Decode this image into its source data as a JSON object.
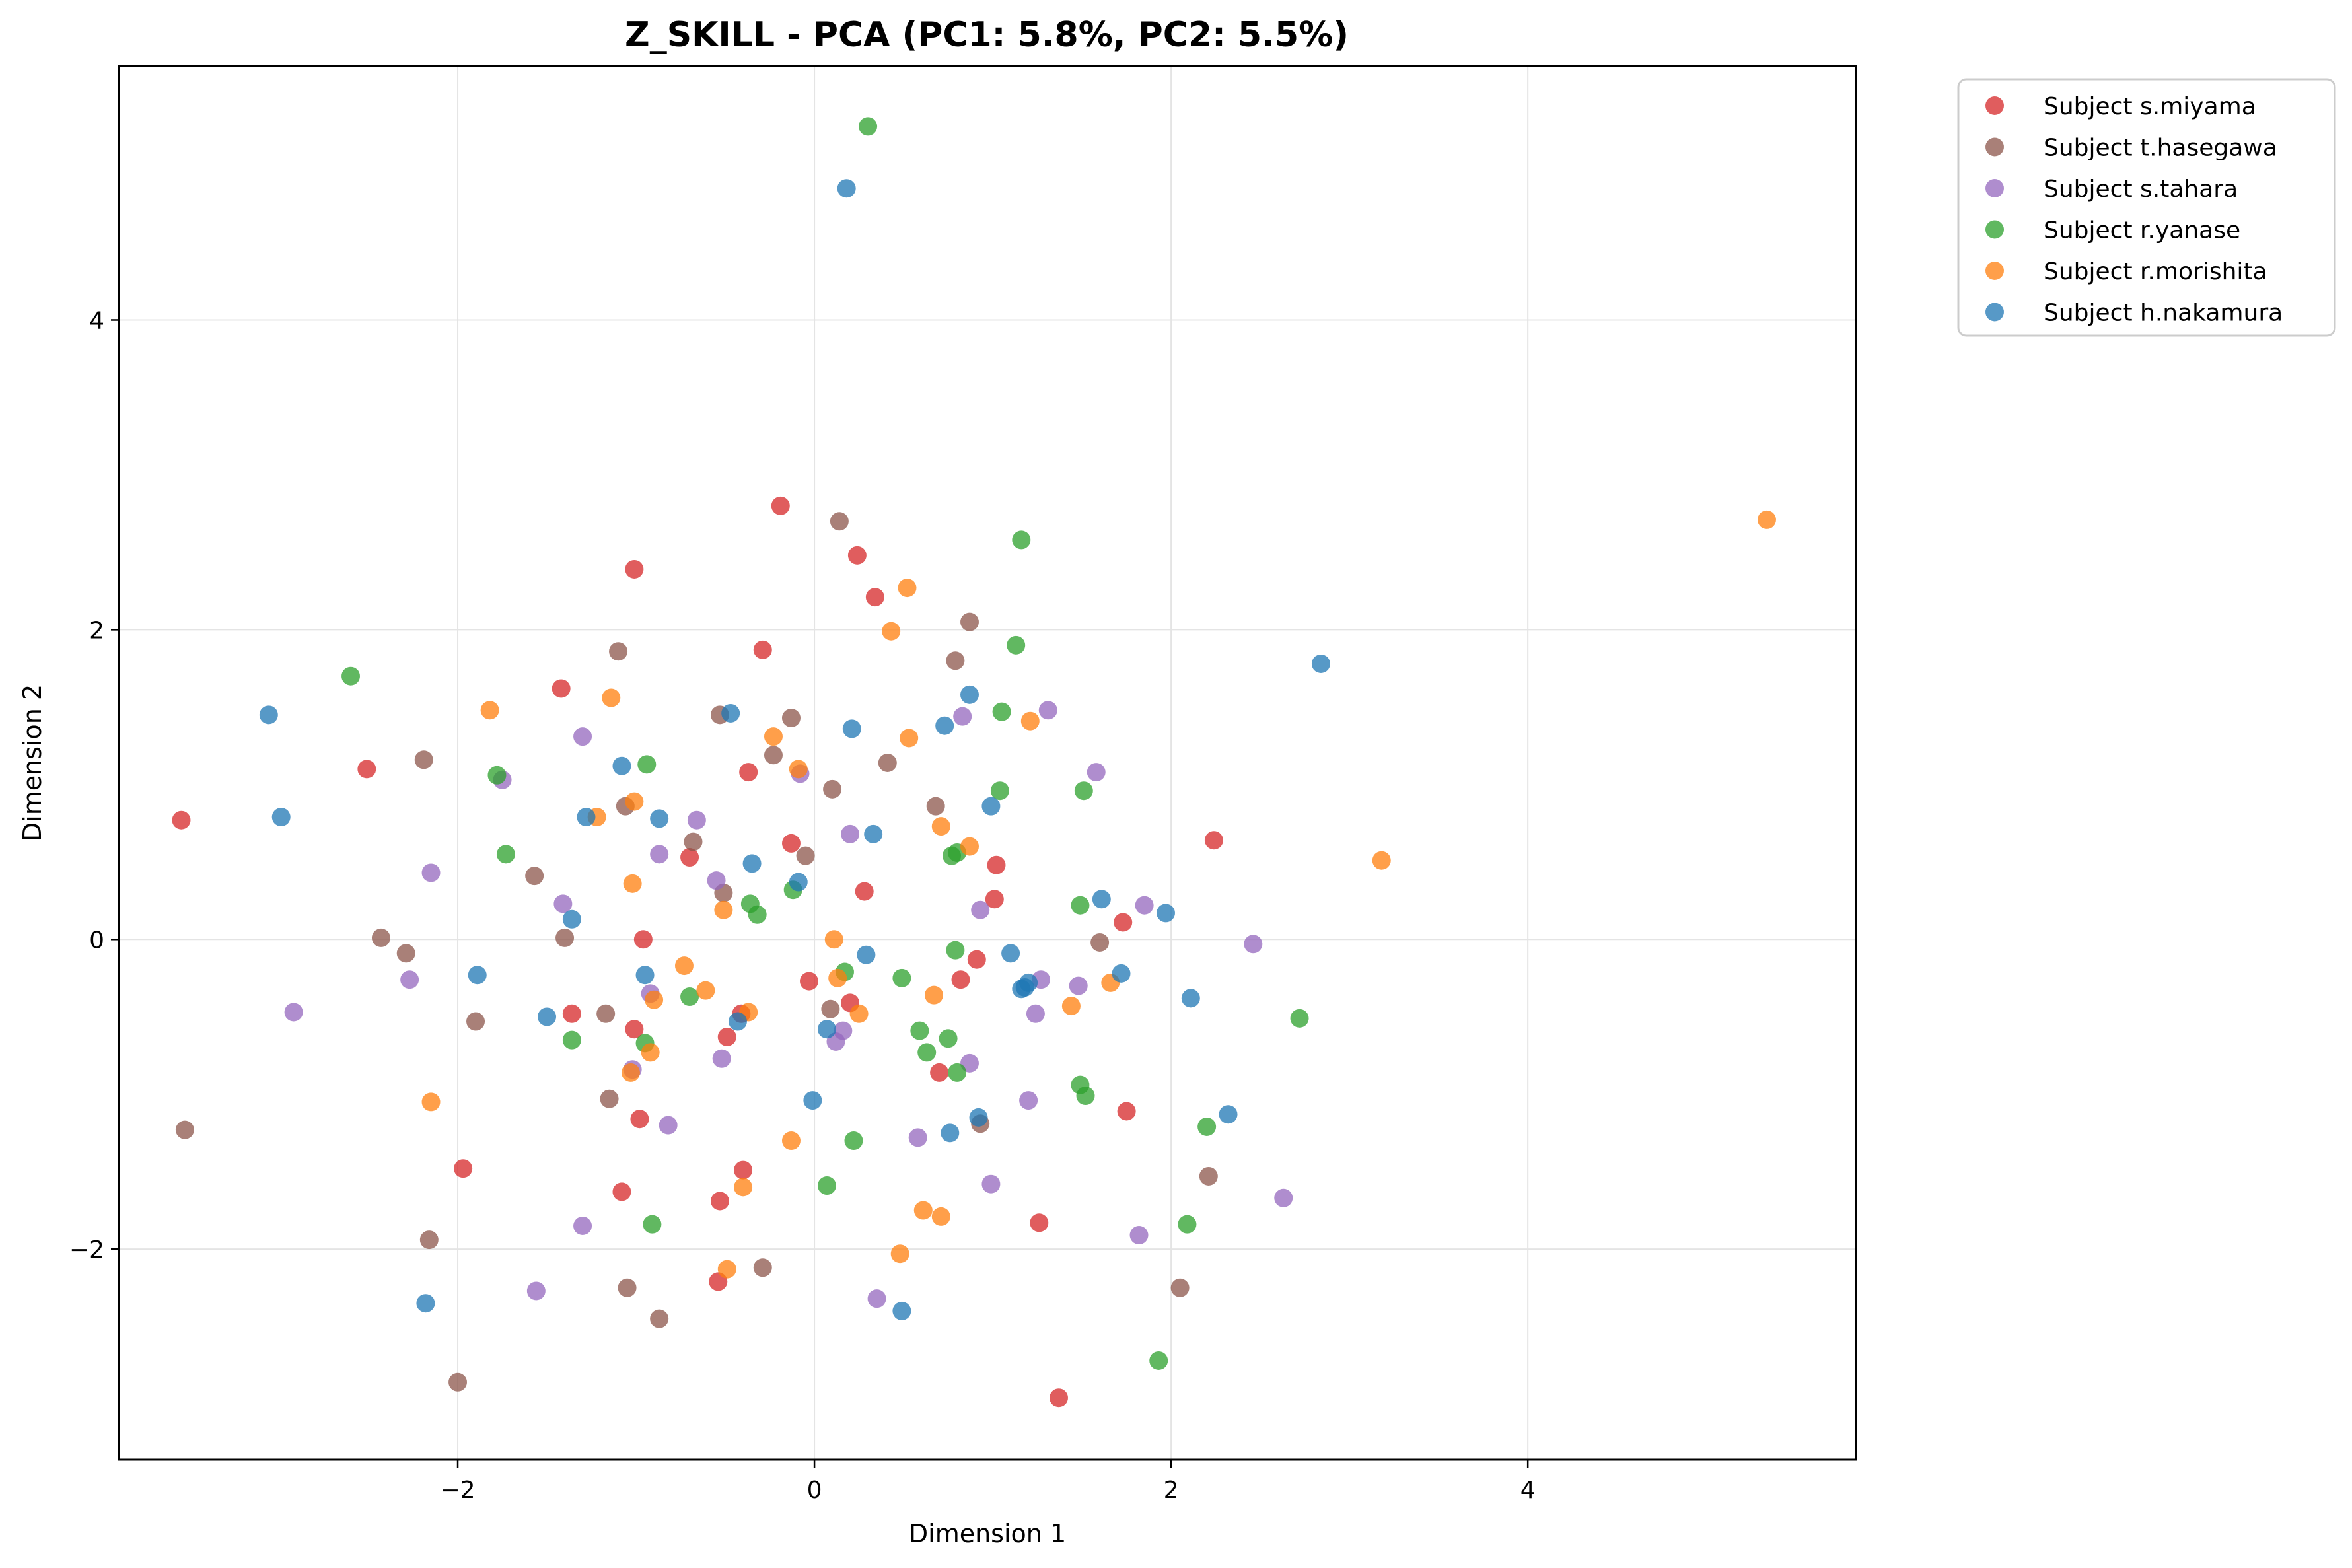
{
  "chart_data": {
    "type": "scatter",
    "title": "Z_SKILL - PCA (PC1: 5.8%, PC2: 5.5%)",
    "xlabel": "Dimension 1",
    "ylabel": "Dimension 2",
    "xlim": [
      -3.9,
      5.84
    ],
    "ylim": [
      -3.36,
      5.64
    ],
    "xticks": [
      -2,
      0,
      2,
      4
    ],
    "yticks": [
      -2,
      0,
      2,
      4
    ],
    "grid": true,
    "legend_position": "outside top-right",
    "series": [
      {
        "name": "Subject s.miyama",
        "color": "#d62728",
        "points": [
          [
            -3.55,
            0.77
          ],
          [
            -2.51,
            1.1
          ],
          [
            -1.42,
            1.62
          ],
          [
            -1.01,
            2.39
          ],
          [
            -0.19,
            2.8
          ],
          [
            0.24,
            2.48
          ],
          [
            0.34,
            2.21
          ],
          [
            -0.29,
            1.87
          ],
          [
            -0.37,
            1.08
          ],
          [
            -0.13,
            0.62
          ],
          [
            -0.7,
            0.53
          ],
          [
            0.28,
            0.31
          ],
          [
            1.02,
            0.48
          ],
          [
            1.01,
            0.26
          ],
          [
            1.73,
            0.11
          ],
          [
            2.24,
            0.64
          ],
          [
            -0.96,
            0.0
          ],
          [
            -0.03,
            -0.27
          ],
          [
            0.82,
            -0.26
          ],
          [
            0.2,
            -0.41
          ],
          [
            0.91,
            -0.13
          ],
          [
            -1.36,
            -0.48
          ],
          [
            -1.01,
            -0.58
          ],
          [
            -0.41,
            -0.48
          ],
          [
            -0.49,
            -0.63
          ],
          [
            0.7,
            -0.86
          ],
          [
            -0.98,
            -1.16
          ],
          [
            1.75,
            -1.11
          ],
          [
            -1.97,
            -1.48
          ],
          [
            -0.4,
            -1.49
          ],
          [
            -1.08,
            -1.63
          ],
          [
            -0.53,
            -1.69
          ],
          [
            1.26,
            -1.83
          ],
          [
            -0.54,
            -2.21
          ],
          [
            1.37,
            -2.96
          ]
        ]
      },
      {
        "name": "Subject t.hasegawa",
        "color": "#8c564b",
        "points": [
          [
            0.14,
            2.7
          ],
          [
            0.87,
            2.05
          ],
          [
            -1.1,
            1.86
          ],
          [
            0.79,
            1.8
          ],
          [
            -0.53,
            1.45
          ],
          [
            -0.13,
            1.43
          ],
          [
            -0.23,
            1.19
          ],
          [
            0.41,
            1.14
          ],
          [
            -2.19,
            1.16
          ],
          [
            -1.06,
            0.86
          ],
          [
            0.1,
            0.97
          ],
          [
            0.68,
            0.86
          ],
          [
            -0.68,
            0.63
          ],
          [
            -0.05,
            0.54
          ],
          [
            -1.57,
            0.41
          ],
          [
            -0.51,
            0.3
          ],
          [
            -2.43,
            0.01
          ],
          [
            -2.29,
            -0.09
          ],
          [
            -1.4,
            0.01
          ],
          [
            1.6,
            -0.02
          ],
          [
            0.09,
            -0.45
          ],
          [
            -1.17,
            -0.48
          ],
          [
            -1.9,
            -0.53
          ],
          [
            -1.15,
            -1.03
          ],
          [
            0.93,
            -1.19
          ],
          [
            -3.53,
            -1.23
          ],
          [
            2.21,
            -1.53
          ],
          [
            -2.16,
            -1.94
          ],
          [
            -0.29,
            -2.12
          ],
          [
            -1.05,
            -2.25
          ],
          [
            2.05,
            -2.25
          ],
          [
            -0.87,
            -2.45
          ],
          [
            -2.0,
            -2.86
          ]
        ]
      },
      {
        "name": "Subject s.tahara",
        "color": "#9467bd",
        "points": [
          [
            1.31,
            1.48
          ],
          [
            0.83,
            1.44
          ],
          [
            -1.3,
            1.31
          ],
          [
            1.58,
            1.08
          ],
          [
            -0.08,
            1.07
          ],
          [
            -1.75,
            1.03
          ],
          [
            -0.66,
            0.77
          ],
          [
            0.2,
            0.68
          ],
          [
            -0.87,
            0.55
          ],
          [
            -0.55,
            0.38
          ],
          [
            -2.15,
            0.43
          ],
          [
            -1.41,
            0.23
          ],
          [
            0.93,
            0.19
          ],
          [
            1.85,
            0.22
          ],
          [
            2.46,
            -0.03
          ],
          [
            -2.27,
            -0.26
          ],
          [
            1.27,
            -0.26
          ],
          [
            1.48,
            -0.3
          ],
          [
            -0.92,
            -0.35
          ],
          [
            1.24,
            -0.48
          ],
          [
            -2.92,
            -0.47
          ],
          [
            0.16,
            -0.59
          ],
          [
            0.12,
            -0.66
          ],
          [
            -0.52,
            -0.77
          ],
          [
            -1.02,
            -0.84
          ],
          [
            0.87,
            -0.8
          ],
          [
            -0.82,
            -1.2
          ],
          [
            1.2,
            -1.04
          ],
          [
            0.58,
            -1.28
          ],
          [
            0.99,
            -1.58
          ],
          [
            2.63,
            -1.67
          ],
          [
            -1.3,
            -1.85
          ],
          [
            1.82,
            -1.91
          ],
          [
            0.35,
            -2.32
          ],
          [
            -1.56,
            -2.27
          ]
        ]
      },
      {
        "name": "Subject r.yanase",
        "color": "#2ca02c",
        "points": [
          [
            0.3,
            5.25
          ],
          [
            -2.6,
            1.7
          ],
          [
            1.16,
            2.58
          ],
          [
            1.13,
            1.9
          ],
          [
            1.05,
            1.47
          ],
          [
            -0.94,
            1.13
          ],
          [
            -1.78,
            1.06
          ],
          [
            1.04,
            0.96
          ],
          [
            1.51,
            0.96
          ],
          [
            -1.73,
            0.55
          ],
          [
            0.77,
            0.54
          ],
          [
            0.8,
            0.56
          ],
          [
            -0.36,
            0.23
          ],
          [
            -0.32,
            0.16
          ],
          [
            -0.12,
            0.32
          ],
          [
            1.49,
            0.22
          ],
          [
            0.79,
            -0.07
          ],
          [
            0.17,
            -0.21
          ],
          [
            0.49,
            -0.25
          ],
          [
            -0.7,
            -0.37
          ],
          [
            0.59,
            -0.59
          ],
          [
            0.75,
            -0.64
          ],
          [
            -1.36,
            -0.65
          ],
          [
            -0.95,
            -0.67
          ],
          [
            0.63,
            -0.73
          ],
          [
            0.8,
            -0.86
          ],
          [
            2.72,
            -0.51
          ],
          [
            1.49,
            -0.94
          ],
          [
            1.52,
            -1.01
          ],
          [
            2.2,
            -1.21
          ],
          [
            0.22,
            -1.3
          ],
          [
            0.07,
            -1.59
          ],
          [
            -0.91,
            -1.84
          ],
          [
            2.09,
            -1.84
          ],
          [
            1.93,
            -2.72
          ]
        ]
      },
      {
        "name": "Subject r.morishita",
        "color": "#ff7f0e",
        "points": [
          [
            5.34,
            2.71
          ],
          [
            0.52,
            2.27
          ],
          [
            0.43,
            1.99
          ],
          [
            -1.14,
            1.56
          ],
          [
            -1.82,
            1.48
          ],
          [
            1.21,
            1.41
          ],
          [
            -0.23,
            1.31
          ],
          [
            0.53,
            1.3
          ],
          [
            -0.09,
            1.1
          ],
          [
            -1.01,
            0.89
          ],
          [
            -1.22,
            0.79
          ],
          [
            0.71,
            0.73
          ],
          [
            0.87,
            0.6
          ],
          [
            -1.02,
            0.36
          ],
          [
            3.18,
            0.51
          ],
          [
            -0.51,
            0.19
          ],
          [
            0.11,
            0.0
          ],
          [
            -0.73,
            -0.17
          ],
          [
            -0.61,
            -0.33
          ],
          [
            0.13,
            -0.25
          ],
          [
            -0.9,
            -0.39
          ],
          [
            0.67,
            -0.36
          ],
          [
            1.44,
            -0.43
          ],
          [
            -0.37,
            -0.47
          ],
          [
            0.25,
            -0.48
          ],
          [
            1.66,
            -0.28
          ],
          [
            -0.92,
            -0.73
          ],
          [
            -1.03,
            -0.86
          ],
          [
            -2.15,
            -1.05
          ],
          [
            -0.13,
            -1.3
          ],
          [
            -0.4,
            -1.6
          ],
          [
            0.61,
            -1.75
          ],
          [
            0.71,
            -1.79
          ],
          [
            0.48,
            -2.03
          ],
          [
            -0.49,
            -2.13
          ]
        ]
      },
      {
        "name": "Subject h.nakamura",
        "color": "#1f77b4",
        "points": [
          [
            0.18,
            4.85
          ],
          [
            -3.06,
            1.45
          ],
          [
            2.84,
            1.78
          ],
          [
            0.87,
            1.58
          ],
          [
            -0.47,
            1.46
          ],
          [
            0.73,
            1.38
          ],
          [
            0.21,
            1.36
          ],
          [
            -1.08,
            1.12
          ],
          [
            -2.99,
            0.79
          ],
          [
            -1.28,
            0.79
          ],
          [
            -0.87,
            0.78
          ],
          [
            0.99,
            0.86
          ],
          [
            0.33,
            0.68
          ],
          [
            -0.35,
            0.49
          ],
          [
            -0.09,
            0.37
          ],
          [
            1.61,
            0.26
          ],
          [
            1.97,
            0.17
          ],
          [
            -1.36,
            0.13
          ],
          [
            0.29,
            -0.1
          ],
          [
            1.1,
            -0.09
          ],
          [
            1.2,
            -0.28
          ],
          [
            1.18,
            -0.31
          ],
          [
            1.16,
            -0.32
          ],
          [
            1.72,
            -0.22
          ],
          [
            -1.89,
            -0.23
          ],
          [
            -0.95,
            -0.23
          ],
          [
            2.11,
            -0.38
          ],
          [
            -1.5,
            -0.5
          ],
          [
            -0.43,
            -0.53
          ],
          [
            0.07,
            -0.58
          ],
          [
            -0.01,
            -1.04
          ],
          [
            0.92,
            -1.15
          ],
          [
            2.32,
            -1.13
          ],
          [
            0.76,
            -1.25
          ],
          [
            -2.18,
            -2.35
          ],
          [
            0.49,
            -2.4
          ]
        ]
      }
    ]
  }
}
